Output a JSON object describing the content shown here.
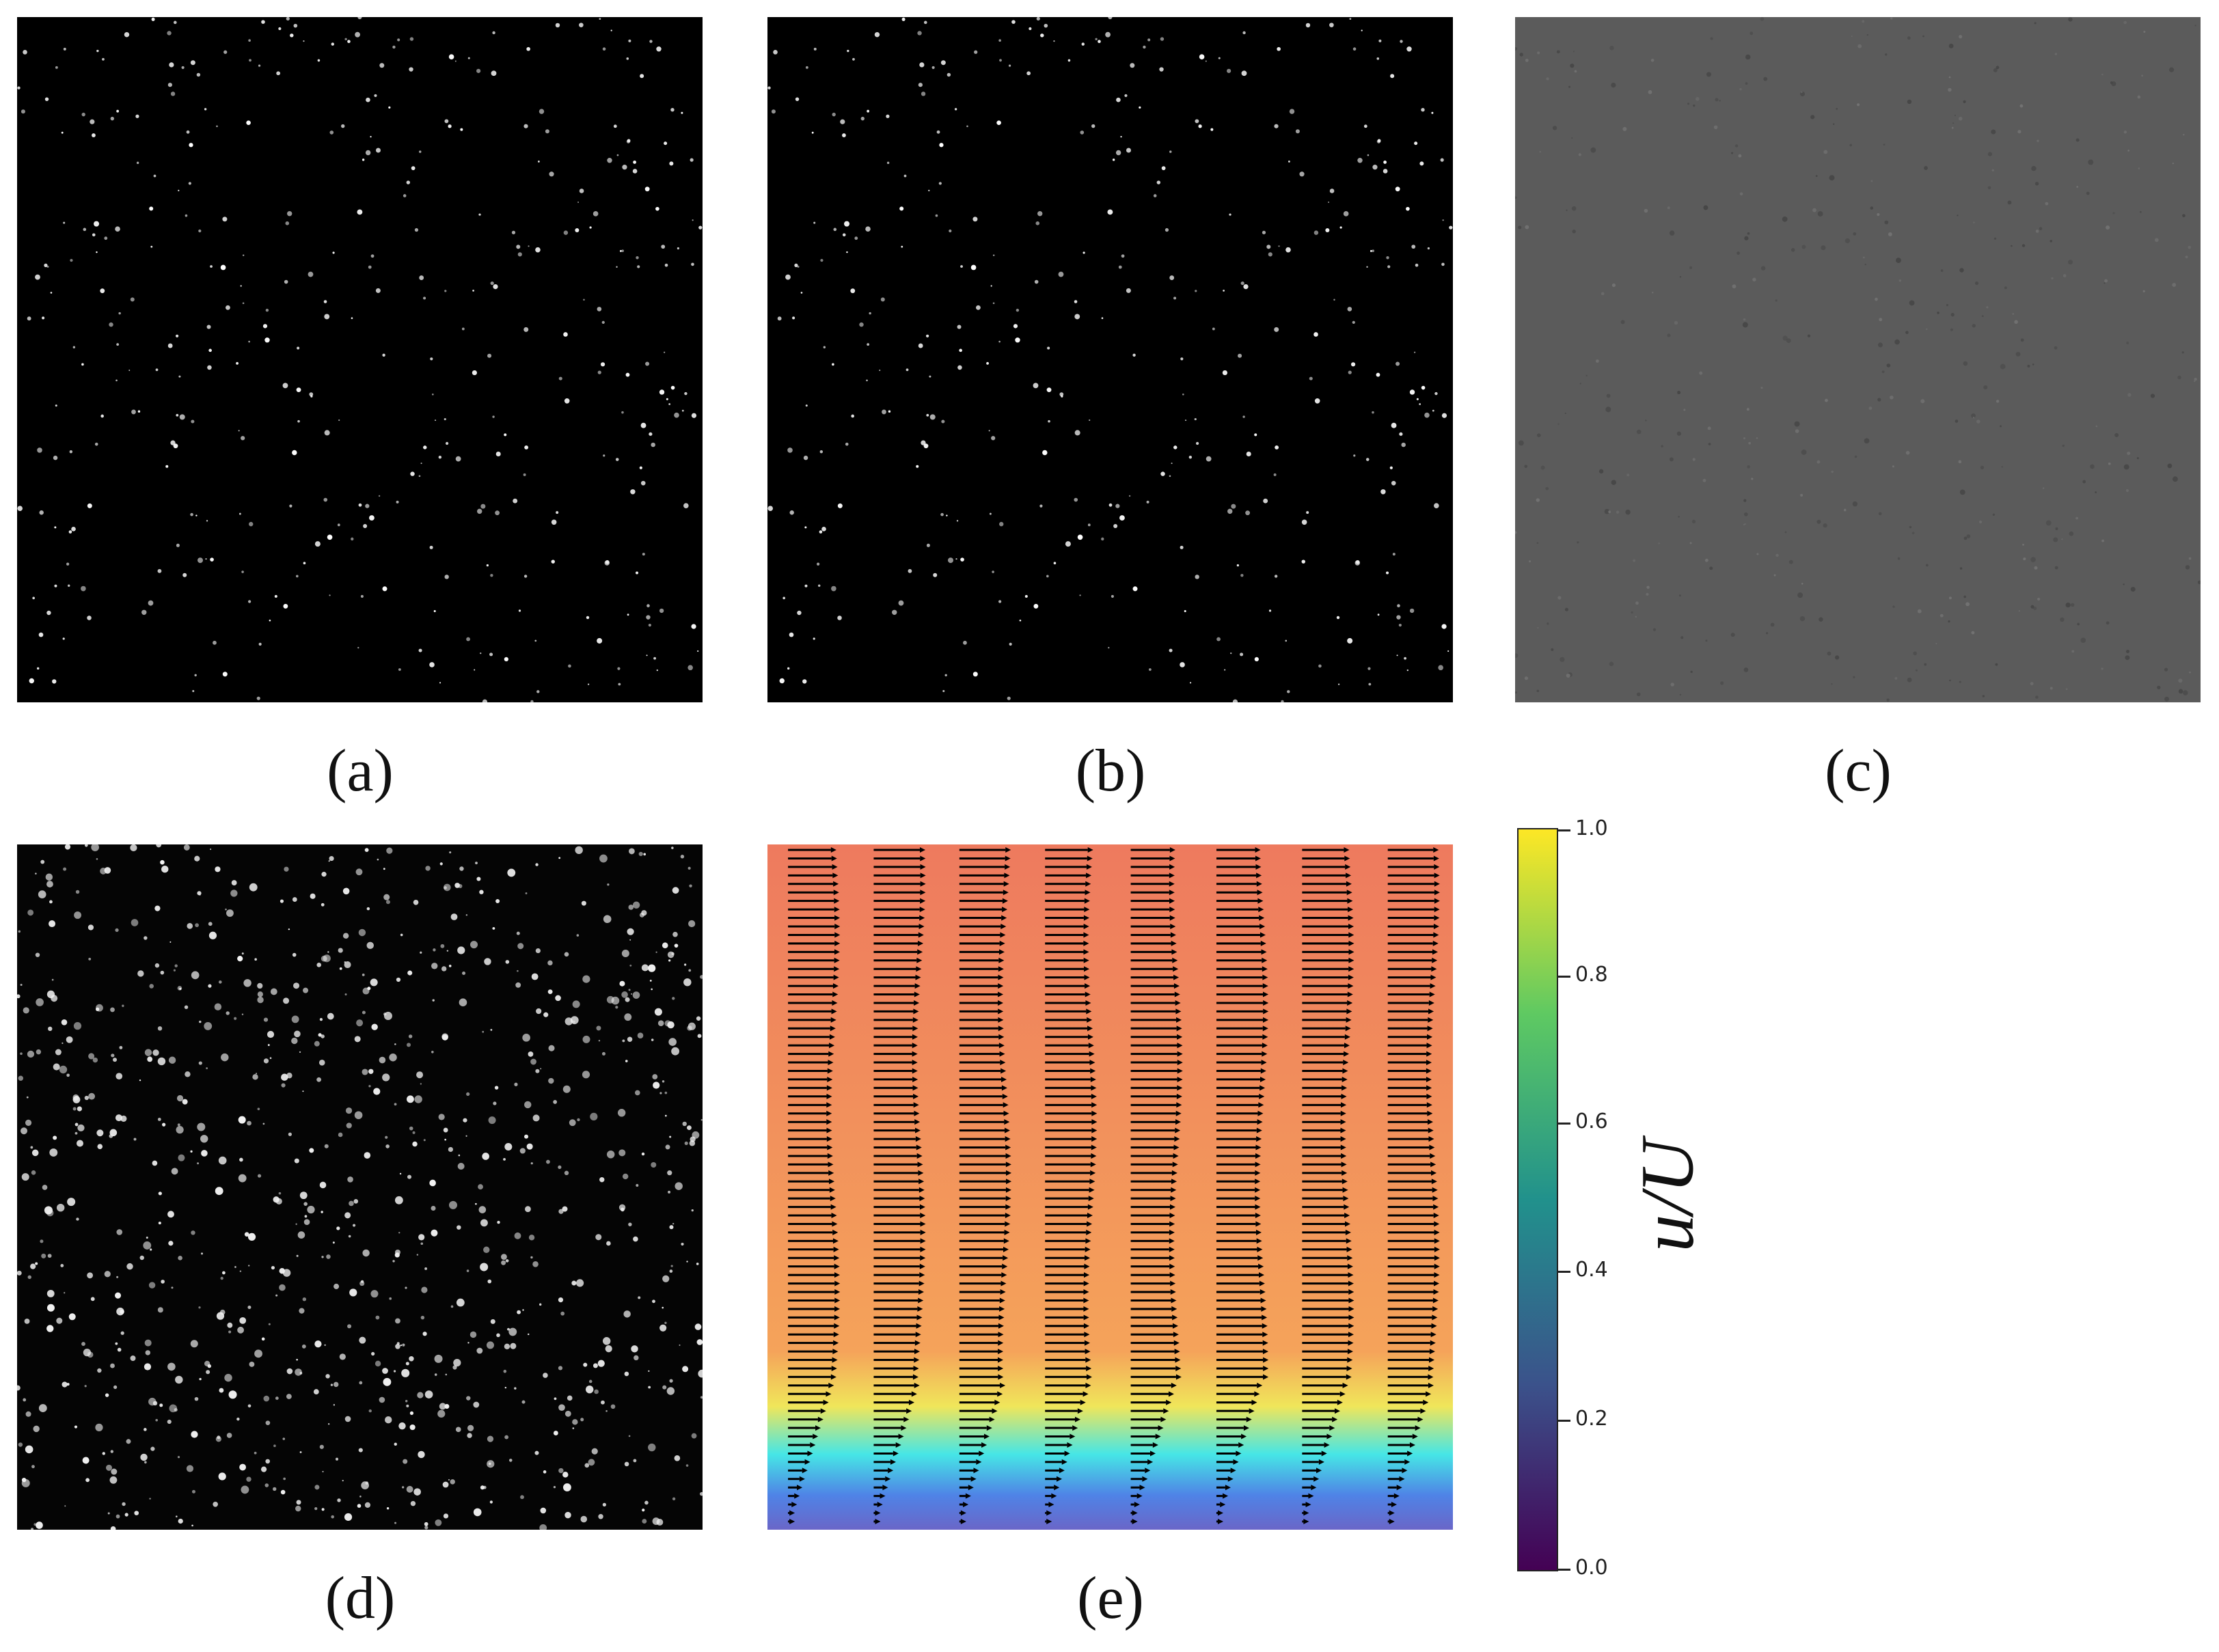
{
  "panels": [
    {
      "id": "a",
      "label": "(a)",
      "content": "particle-image-frame-1"
    },
    {
      "id": "b",
      "label": "(b)",
      "content": "particle-image-frame-2"
    },
    {
      "id": "c",
      "label": "(c)",
      "content": "difference-image"
    },
    {
      "id": "d",
      "label": "(d)",
      "content": "enhanced-particle-image"
    },
    {
      "id": "e",
      "label": "(e)",
      "content": "velocity-field"
    }
  ],
  "colorbar": {
    "title": "u/U",
    "ticks": [
      "0.0",
      "0.2",
      "0.4",
      "0.6",
      "0.8",
      "1.0"
    ],
    "range": [
      0,
      1
    ],
    "colormap": [
      "#440154",
      "#3b528b",
      "#21918c",
      "#5ec962",
      "#fde725"
    ]
  },
  "velocity_field": {
    "columns": 8,
    "rows_per_column": 80,
    "background_colors": [
      "#ee7a5e",
      "#f5a35a",
      "#f0e65a",
      "#46e6e6",
      "#4f83e6",
      "#6a66c8"
    ],
    "arrow_color": "#000000"
  }
}
